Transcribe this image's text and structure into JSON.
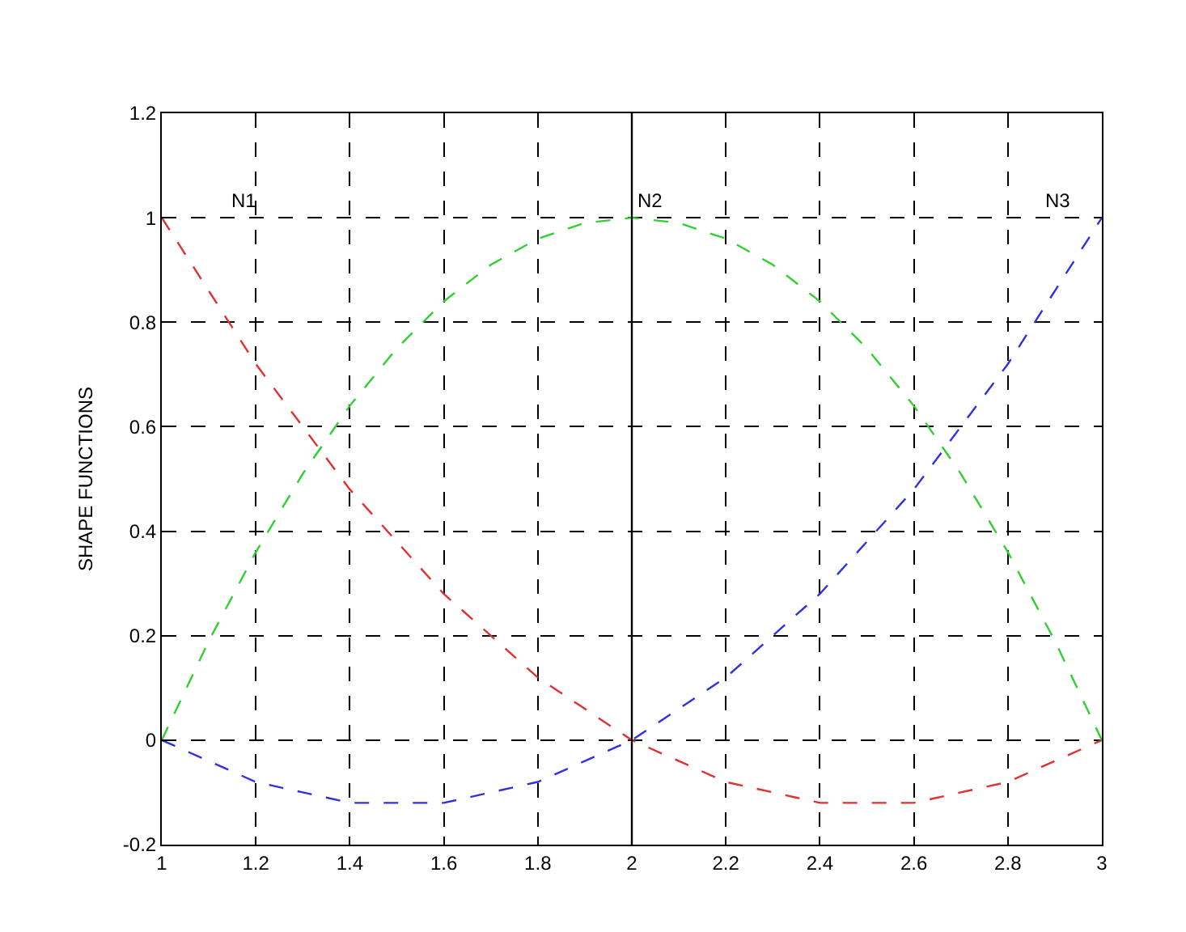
{
  "chart_data": {
    "type": "line",
    "ylabel": "SHAPE FUNCTIONS",
    "x": [
      1,
      1.1,
      1.2,
      1.3,
      1.4,
      1.5,
      1.6,
      1.7,
      1.8,
      1.9,
      2,
      2.1,
      2.2,
      2.3,
      2.4,
      2.5,
      2.6,
      2.7,
      2.8,
      2.9,
      3
    ],
    "series": [
      {
        "color": "#e03030",
        "values": [
          1,
          0.86,
          0.72,
          0.6,
          0.48,
          0.38,
          0.28,
          0.2,
          0.12,
          0.06,
          0,
          -0.04,
          -0.08,
          -0.1,
          -0.12,
          -0.12,
          -0.12,
          -0.1,
          -0.08,
          -0.04,
          0
        ]
      },
      {
        "color": "#30d030",
        "values": [
          0,
          0.19,
          0.36,
          0.51,
          0.64,
          0.75,
          0.84,
          0.91,
          0.96,
          0.99,
          1,
          0.99,
          0.96,
          0.91,
          0.84,
          0.75,
          0.64,
          0.51,
          0.36,
          0.19,
          0
        ]
      },
      {
        "color": "#3030e0",
        "values": [
          0,
          -0.04,
          -0.08,
          -0.1,
          -0.12,
          -0.12,
          -0.12,
          -0.1,
          -0.08,
          -0.04,
          0,
          0.06,
          0.12,
          0.2,
          0.28,
          0.38,
          0.48,
          0.6,
          0.72,
          0.86,
          1
        ]
      }
    ],
    "xlim": [
      1,
      3
    ],
    "xticks": [
      1,
      1.2,
      1.4,
      1.6,
      1.8,
      2,
      2.2,
      2.4,
      2.6,
      2.8,
      3
    ],
    "ylim": [
      -0.2,
      1.2
    ],
    "yticks": [
      -0.2,
      0,
      0.2,
      0.4,
      0.6,
      0.8,
      1,
      1.2
    ],
    "grid": true,
    "line_style": "dashed",
    "marker": "none",
    "ref_lines": [
      {
        "axis": "x",
        "value": 2,
        "color": "#000000",
        "line_style": "solid"
      }
    ],
    "annotations": [
      "N1",
      "N2",
      "N3"
    ]
  }
}
